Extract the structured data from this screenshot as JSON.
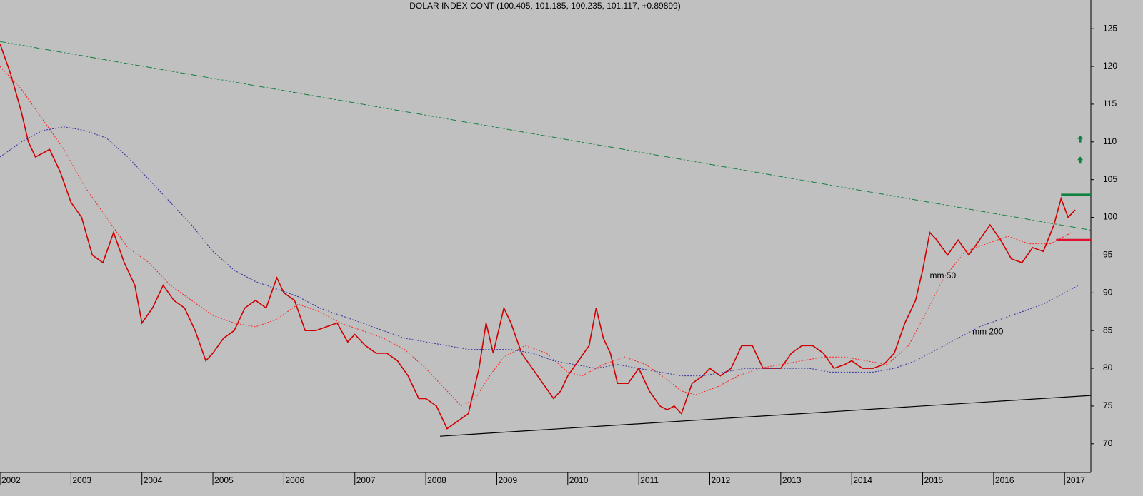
{
  "chart_data": {
    "type": "line",
    "title": "DOLAR INDEX CONT (100.405, 101.185, 100.235, 101.117, +0.89899)",
    "xlim": [
      2002.0,
      2017.37
    ],
    "ylim": [
      66.2,
      128.8
    ],
    "xticks": [
      2002,
      2003,
      2004,
      2005,
      2006,
      2007,
      2008,
      2009,
      2010,
      2011,
      2012,
      2013,
      2014,
      2015,
      2016,
      2017
    ],
    "yticks": [
      70,
      75,
      80,
      85,
      90,
      95,
      100,
      105,
      110,
      115,
      120,
      125
    ],
    "background": "#c0c0c0",
    "series": [
      {
        "name": "DOLAR INDEX CONT",
        "color": "#d00000",
        "x": [
          2002.0,
          2002.15,
          2002.3,
          2002.4,
          2002.5,
          2002.7,
          2002.85,
          2003.0,
          2003.15,
          2003.3,
          2003.45,
          2003.6,
          2003.75,
          2003.9,
          2004.0,
          2004.15,
          2004.3,
          2004.45,
          2004.6,
          2004.75,
          2004.9,
          2005.0,
          2005.15,
          2005.3,
          2005.45,
          2005.6,
          2005.75,
          2005.9,
          2006.0,
          2006.15,
          2006.3,
          2006.45,
          2006.6,
          2006.75,
          2006.9,
          2007.0,
          2007.15,
          2007.3,
          2007.45,
          2007.6,
          2007.75,
          2007.9,
          2008.0,
          2008.15,
          2008.3,
          2008.45,
          2008.6,
          2008.75,
          2008.85,
          2008.95,
          2009.1,
          2009.2,
          2009.35,
          2009.5,
          2009.65,
          2009.8,
          2009.9,
          2010.0,
          2010.15,
          2010.3,
          2010.4,
          2010.5,
          2010.6,
          2010.7,
          2010.85,
          2011.0,
          2011.15,
          2011.3,
          2011.4,
          2011.5,
          2011.6,
          2011.75,
          2011.9,
          2012.0,
          2012.15,
          2012.3,
          2012.45,
          2012.6,
          2012.75,
          2012.9,
          2013.0,
          2013.15,
          2013.3,
          2013.45,
          2013.6,
          2013.75,
          2013.9,
          2014.0,
          2014.15,
          2014.3,
          2014.45,
          2014.6,
          2014.75,
          2014.9,
          2015.0,
          2015.1,
          2015.2,
          2015.35,
          2015.5,
          2015.65,
          2015.8,
          2015.95,
          2016.1,
          2016.25,
          2016.4,
          2016.55,
          2016.7,
          2016.85,
          2016.95,
          2017.05,
          2017.15
        ],
        "values": [
          123,
          119,
          114,
          110,
          108,
          109,
          106,
          102,
          100,
          95,
          94,
          98,
          94,
          91,
          86,
          88,
          91,
          89,
          88,
          85,
          81,
          82,
          84,
          85,
          88,
          89,
          88,
          92,
          90,
          89,
          85,
          85,
          85.5,
          86,
          83.5,
          84.5,
          83,
          82,
          82,
          81,
          79,
          76,
          76,
          75,
          72,
          73,
          74,
          80,
          86,
          82,
          88,
          86,
          82,
          80,
          78,
          76,
          77,
          79,
          81,
          83,
          88,
          84,
          82,
          78,
          78,
          80,
          77,
          75,
          74.5,
          75,
          74,
          78,
          79,
          80,
          79,
          80,
          83,
          83,
          80,
          80,
          80,
          82,
          83,
          83,
          82,
          80,
          80.5,
          81,
          80,
          80,
          80.5,
          82,
          86,
          89,
          93,
          98,
          97,
          95,
          97,
          95,
          97,
          99,
          97,
          94.5,
          94,
          96,
          95.5,
          99,
          102.5,
          100,
          101
        ]
      },
      {
        "name": "mm 50",
        "color": "#ff2020",
        "x": [
          2002.0,
          2002.3,
          2002.6,
          2002.9,
          2003.2,
          2003.5,
          2003.8,
          2004.1,
          2004.4,
          2004.7,
          2005.0,
          2005.3,
          2005.6,
          2005.9,
          2006.2,
          2006.5,
          2006.8,
          2007.1,
          2007.4,
          2007.7,
          2008.0,
          2008.3,
          2008.5,
          2008.7,
          2008.9,
          2009.1,
          2009.4,
          2009.7,
          2010.0,
          2010.2,
          2010.5,
          2010.8,
          2011.1,
          2011.4,
          2011.6,
          2011.8,
          2012.1,
          2012.4,
          2012.7,
          2013.0,
          2013.3,
          2013.6,
          2013.9,
          2014.2,
          2014.5,
          2014.8,
          2015.0,
          2015.3,
          2015.6,
          2015.9,
          2016.2,
          2016.5,
          2016.8,
          2017.1
        ],
        "values": [
          120,
          117,
          113,
          109,
          104,
          100,
          96,
          94,
          91,
          89,
          87,
          86,
          85.5,
          86.5,
          88.5,
          87.5,
          86,
          85,
          84,
          82.5,
          80,
          77,
          75,
          76,
          79,
          81.5,
          83,
          82,
          79.5,
          79,
          80.5,
          81.5,
          80.5,
          78.5,
          77,
          76.5,
          77.5,
          79,
          80,
          80.5,
          81,
          81.5,
          81.5,
          81,
          80.5,
          83,
          86.5,
          92,
          95.5,
          96.5,
          97.5,
          96.5,
          96.5,
          98
        ]
      },
      {
        "name": "mm 200",
        "color": "#3030a0",
        "x": [
          2002.0,
          2002.3,
          2002.6,
          2002.9,
          2003.2,
          2003.5,
          2003.8,
          2004.1,
          2004.4,
          2004.7,
          2005.0,
          2005.3,
          2005.6,
          2005.9,
          2006.2,
          2006.5,
          2006.8,
          2007.1,
          2007.4,
          2007.7,
          2008.0,
          2008.3,
          2008.6,
          2008.9,
          2009.2,
          2009.5,
          2009.8,
          2010.1,
          2010.4,
          2010.7,
          2011.0,
          2011.3,
          2011.6,
          2011.9,
          2012.2,
          2012.5,
          2012.8,
          2013.1,
          2013.4,
          2013.7,
          2014.0,
          2014.3,
          2014.6,
          2014.9,
          2015.2,
          2015.5,
          2015.8,
          2016.1,
          2016.4,
          2016.7,
          2017.0,
          2017.2
        ],
        "values": [
          108,
          110,
          111.5,
          112,
          111.5,
          110.5,
          108,
          105,
          102,
          99,
          95.5,
          93,
          91.5,
          90.5,
          89.5,
          88,
          87,
          86,
          85,
          84,
          83.5,
          83,
          82.5,
          82.5,
          82.5,
          82,
          81,
          80.5,
          80,
          80.5,
          80,
          79.5,
          79,
          79,
          79.5,
          80,
          80,
          80,
          80,
          79.5,
          79.5,
          79.5,
          80,
          81,
          82.5,
          84,
          85.5,
          86.5,
          87.5,
          88.5,
          90,
          91
        ]
      }
    ],
    "trendlines": [
      {
        "color": "#108040",
        "x": [
          2002.0,
          2017.37
        ],
        "values": [
          123.3,
          98.3
        ]
      },
      {
        "color": "#000000",
        "x": [
          2008.2,
          2017.37
        ],
        "values": [
          71,
          76.4
        ]
      }
    ],
    "levels": [
      {
        "color": "#108040",
        "x": [
          2016.95,
          2017.37
        ],
        "value": 103
      },
      {
        "color": "#e01030",
        "x": [
          2016.88,
          2017.37
        ],
        "value": 97
      }
    ],
    "arrows": [
      {
        "x": 2017.22,
        "value": 110.4
      },
      {
        "x": 2017.22,
        "value": 107.6
      }
    ],
    "cursor_x": 2010.44,
    "annotations": [
      {
        "text": "mm 50",
        "x": 2015.1,
        "value": 92.2,
        "color": "#e01030"
      },
      {
        "text": "mm 200",
        "x": 2015.7,
        "value": 84.8,
        "color": "#4020a0"
      }
    ]
  }
}
